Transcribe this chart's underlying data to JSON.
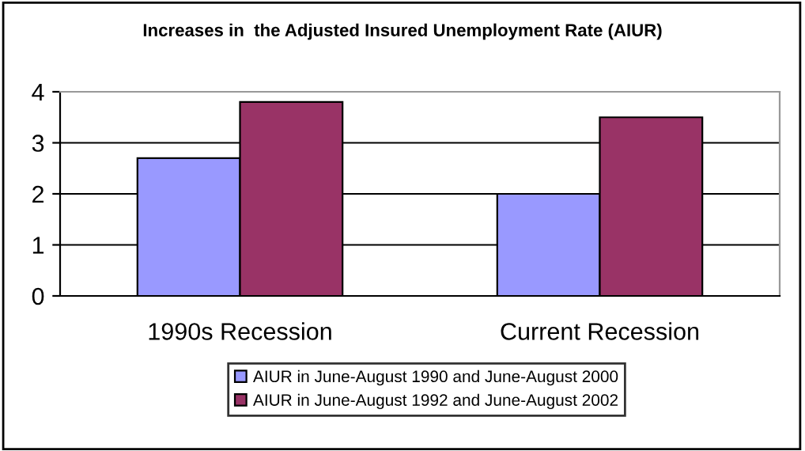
{
  "chart_data": {
    "type": "bar",
    "title": "Increases in  the Adjusted Insured Unemployment Rate (AIUR)",
    "categories": [
      "1990s Recession",
      "Current Recession"
    ],
    "series": [
      {
        "name": "AIUR in June-August 1990 and June-August 2000",
        "color": "#9999ff",
        "values": [
          2.7,
          2.0
        ]
      },
      {
        "name": "AIUR in June-August 1992 and June-August 2002",
        "color": "#993366",
        "values": [
          3.8,
          3.5
        ]
      }
    ],
    "ylim": [
      0,
      4
    ],
    "yticks": [
      0,
      1,
      2,
      3,
      4
    ],
    "grid": "y",
    "legend": "bottom"
  }
}
